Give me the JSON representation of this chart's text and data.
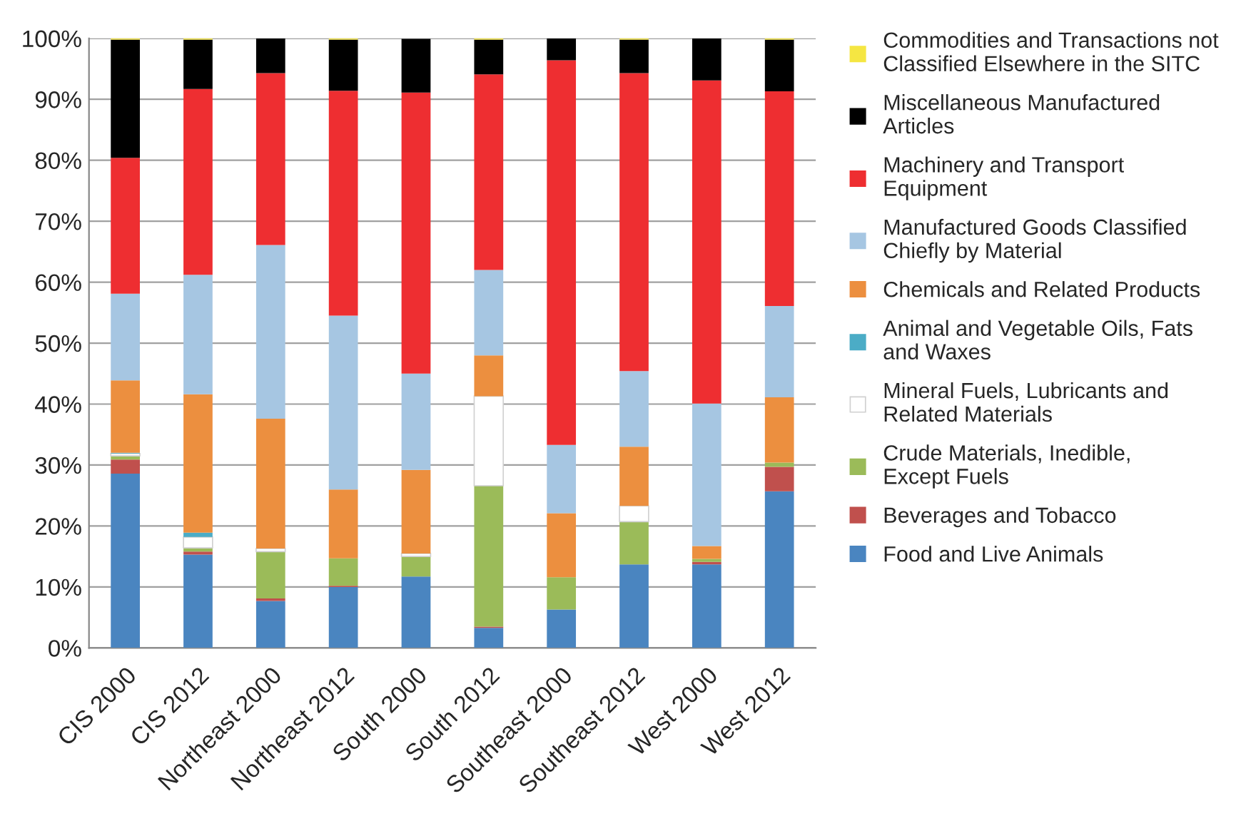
{
  "chart_data": {
    "type": "bar",
    "stacked": true,
    "categories": [
      "CIS 2000",
      "CIS 2012",
      "Northeast 2000",
      "Northeast 2012",
      "South 2000",
      "South 2012",
      "Southeast 2000",
      "Southeast 2012",
      "West 2000",
      "West 2012"
    ],
    "series": [
      {
        "name": "Food and Live Animals",
        "color": "#4a85c0",
        "values": [
          28.6,
          15.3,
          7.7,
          10.0,
          11.7,
          3.3,
          6.3,
          13.7,
          13.7,
          25.7
        ]
      },
      {
        "name": "Beverages and Tobacco",
        "color": "#c0504d",
        "values": [
          2.3,
          0.5,
          0.4,
          0.2,
          null,
          0.2,
          0,
          0,
          0.4,
          4.0
        ]
      },
      {
        "name": "Crude Materials, Inedible, Except Fuels",
        "color": "#9bbb59",
        "values": [
          0.6,
          0.6,
          7.7,
          4.5,
          3.3,
          23.1,
          5.3,
          7.0,
          0.5,
          0.7
        ]
      },
      {
        "name": "Mineral Fuels, Lubricants and Related Materials",
        "color": "#ffffff",
        "values": [
          0.4,
          1.8,
          0.5,
          0,
          0.5,
          14.7,
          0,
          2.6,
          0,
          0
        ]
      },
      {
        "name": "Animal and Vegetable Oils, Fats and Waxes",
        "color": "#4bacc6",
        "values": [
          0.1,
          0.7,
          0,
          0,
          0,
          0,
          0,
          0,
          0,
          0
        ]
      },
      {
        "name": "Chemicals and Related Products",
        "color": "#ec8f3f",
        "values": [
          11.9,
          22.7,
          21.3,
          11.3,
          13.7,
          6.7,
          10.5,
          9.7,
          2.1,
          10.7
        ]
      },
      {
        "name": "Manufactured Goods Classified Chiefly by Material",
        "color": "#a6c6e2",
        "values": [
          14.2,
          19.6,
          28.5,
          28.5,
          15.8,
          14.0,
          11.2,
          12.4,
          23.4,
          15.0
        ]
      },
      {
        "name": "Machinery and Transport Equipment",
        "color": "#ee2e31",
        "values": [
          22.3,
          30.5,
          28.2,
          36.9,
          46.1,
          32.1,
          63.1,
          48.9,
          53.0,
          35.2
        ]
      },
      {
        "name": "Miscellaneous Manufactured Articles",
        "color": "#000000",
        "values": [
          19.4,
          8.1,
          5.7,
          8.4,
          8.8,
          5.7,
          3.6,
          5.5,
          6.9,
          8.5
        ]
      },
      {
        "name": "Commodities and Transactions not Classified Elsewhere in the SITC",
        "color": "#f5e642",
        "values": [
          0.2,
          0.2,
          0,
          0.2,
          0,
          0.2,
          0,
          0.2,
          0,
          0.2
        ]
      }
    ],
    "ylim": [
      0,
      100
    ],
    "yticks": [
      {
        "value": 0,
        "label": "0%"
      },
      {
        "value": 10,
        "label": "10%"
      },
      {
        "value": 20,
        "label": "20%"
      },
      {
        "value": 30,
        "label": "30%"
      },
      {
        "value": 40,
        "label": "40%"
      },
      {
        "value": 50,
        "label": "50%"
      },
      {
        "value": 60,
        "label": "60%"
      },
      {
        "value": 70,
        "label": "70%"
      },
      {
        "value": 80,
        "label": "80%"
      },
      {
        "value": 90,
        "label": "90%"
      },
      {
        "value": 100,
        "label": "100%"
      }
    ],
    "grid": "y",
    "legend": "right"
  }
}
